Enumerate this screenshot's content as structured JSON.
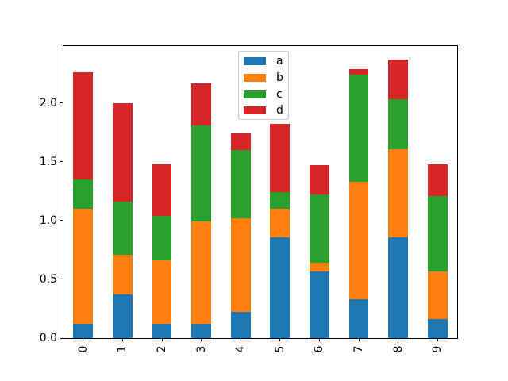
{
  "figure": {
    "background": "#ffffff",
    "frame_color": "#000000",
    "legend_border_color": "#cccccc"
  },
  "chart_data": {
    "type": "bar",
    "stacked": true,
    "title": "",
    "xlabel": "",
    "ylabel": "",
    "grid": false,
    "legend_position": "upper center",
    "categories": [
      "0",
      "1",
      "2",
      "3",
      "4",
      "5",
      "6",
      "7",
      "8",
      "9"
    ],
    "series": [
      {
        "name": "a",
        "color": "#1f77b4",
        "values": [
          0.12,
          0.37,
          0.12,
          0.12,
          0.22,
          0.86,
          0.57,
          0.33,
          0.86,
          0.16
        ]
      },
      {
        "name": "b",
        "color": "#ff7f0e",
        "values": [
          0.98,
          0.34,
          0.54,
          0.87,
          0.8,
          0.24,
          0.07,
          1.0,
          0.75,
          0.41
        ]
      },
      {
        "name": "c",
        "color": "#2ca02c",
        "values": [
          0.25,
          0.45,
          0.38,
          0.82,
          0.58,
          0.14,
          0.58,
          0.91,
          0.42,
          0.64
        ]
      },
      {
        "name": "d",
        "color": "#d62728",
        "values": [
          0.91,
          0.84,
          0.44,
          0.36,
          0.14,
          0.58,
          0.25,
          0.05,
          0.34,
          0.27
        ]
      }
    ],
    "ylim": [
      0,
      2.485
    ],
    "yticks": [
      0.0,
      0.5,
      1.0,
      1.5,
      2.0
    ],
    "ytick_labels": [
      "0.0",
      "0.5",
      "1.0",
      "1.5",
      "2.0"
    ],
    "xtick_rotation_deg": 90
  }
}
